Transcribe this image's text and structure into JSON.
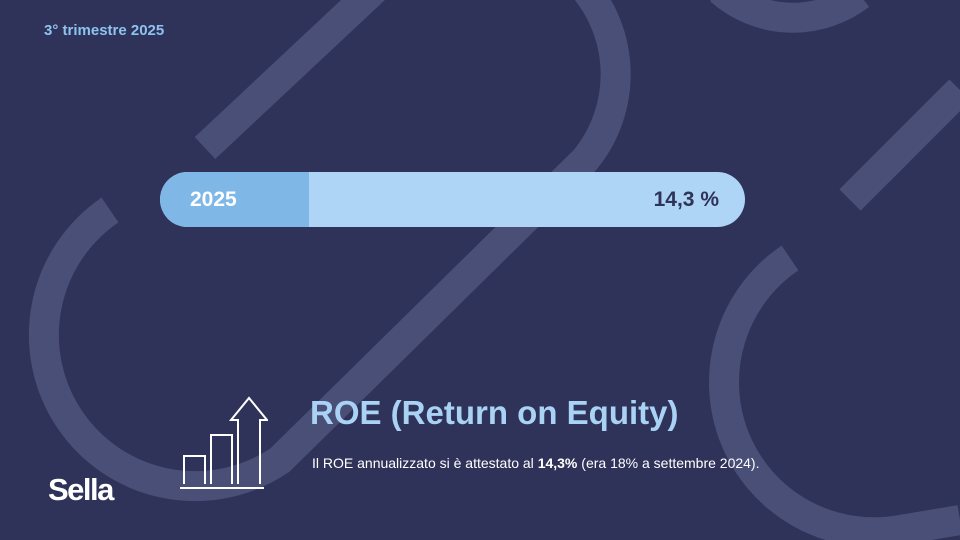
{
  "header": {
    "period": "3° trimestre 2025"
  },
  "bar": {
    "year": "2025",
    "value_label": "14,3 %"
  },
  "kpi": {
    "title": "ROE (Return on Equity)",
    "desc_prefix": "Il ROE annualizzato si è attestato al ",
    "desc_bold": "14,3%",
    "desc_suffix": " (era 18% a settembre 2024)."
  },
  "brand": {
    "logo_text": "Sella"
  },
  "colors": {
    "background": "#2f3359",
    "accent_light": "#aed4f6",
    "accent_mid": "#7fb8e6",
    "title": "#a9d2f5",
    "decoration": "#4a4f78"
  },
  "icons": [
    "growth-chart-icon"
  ]
}
